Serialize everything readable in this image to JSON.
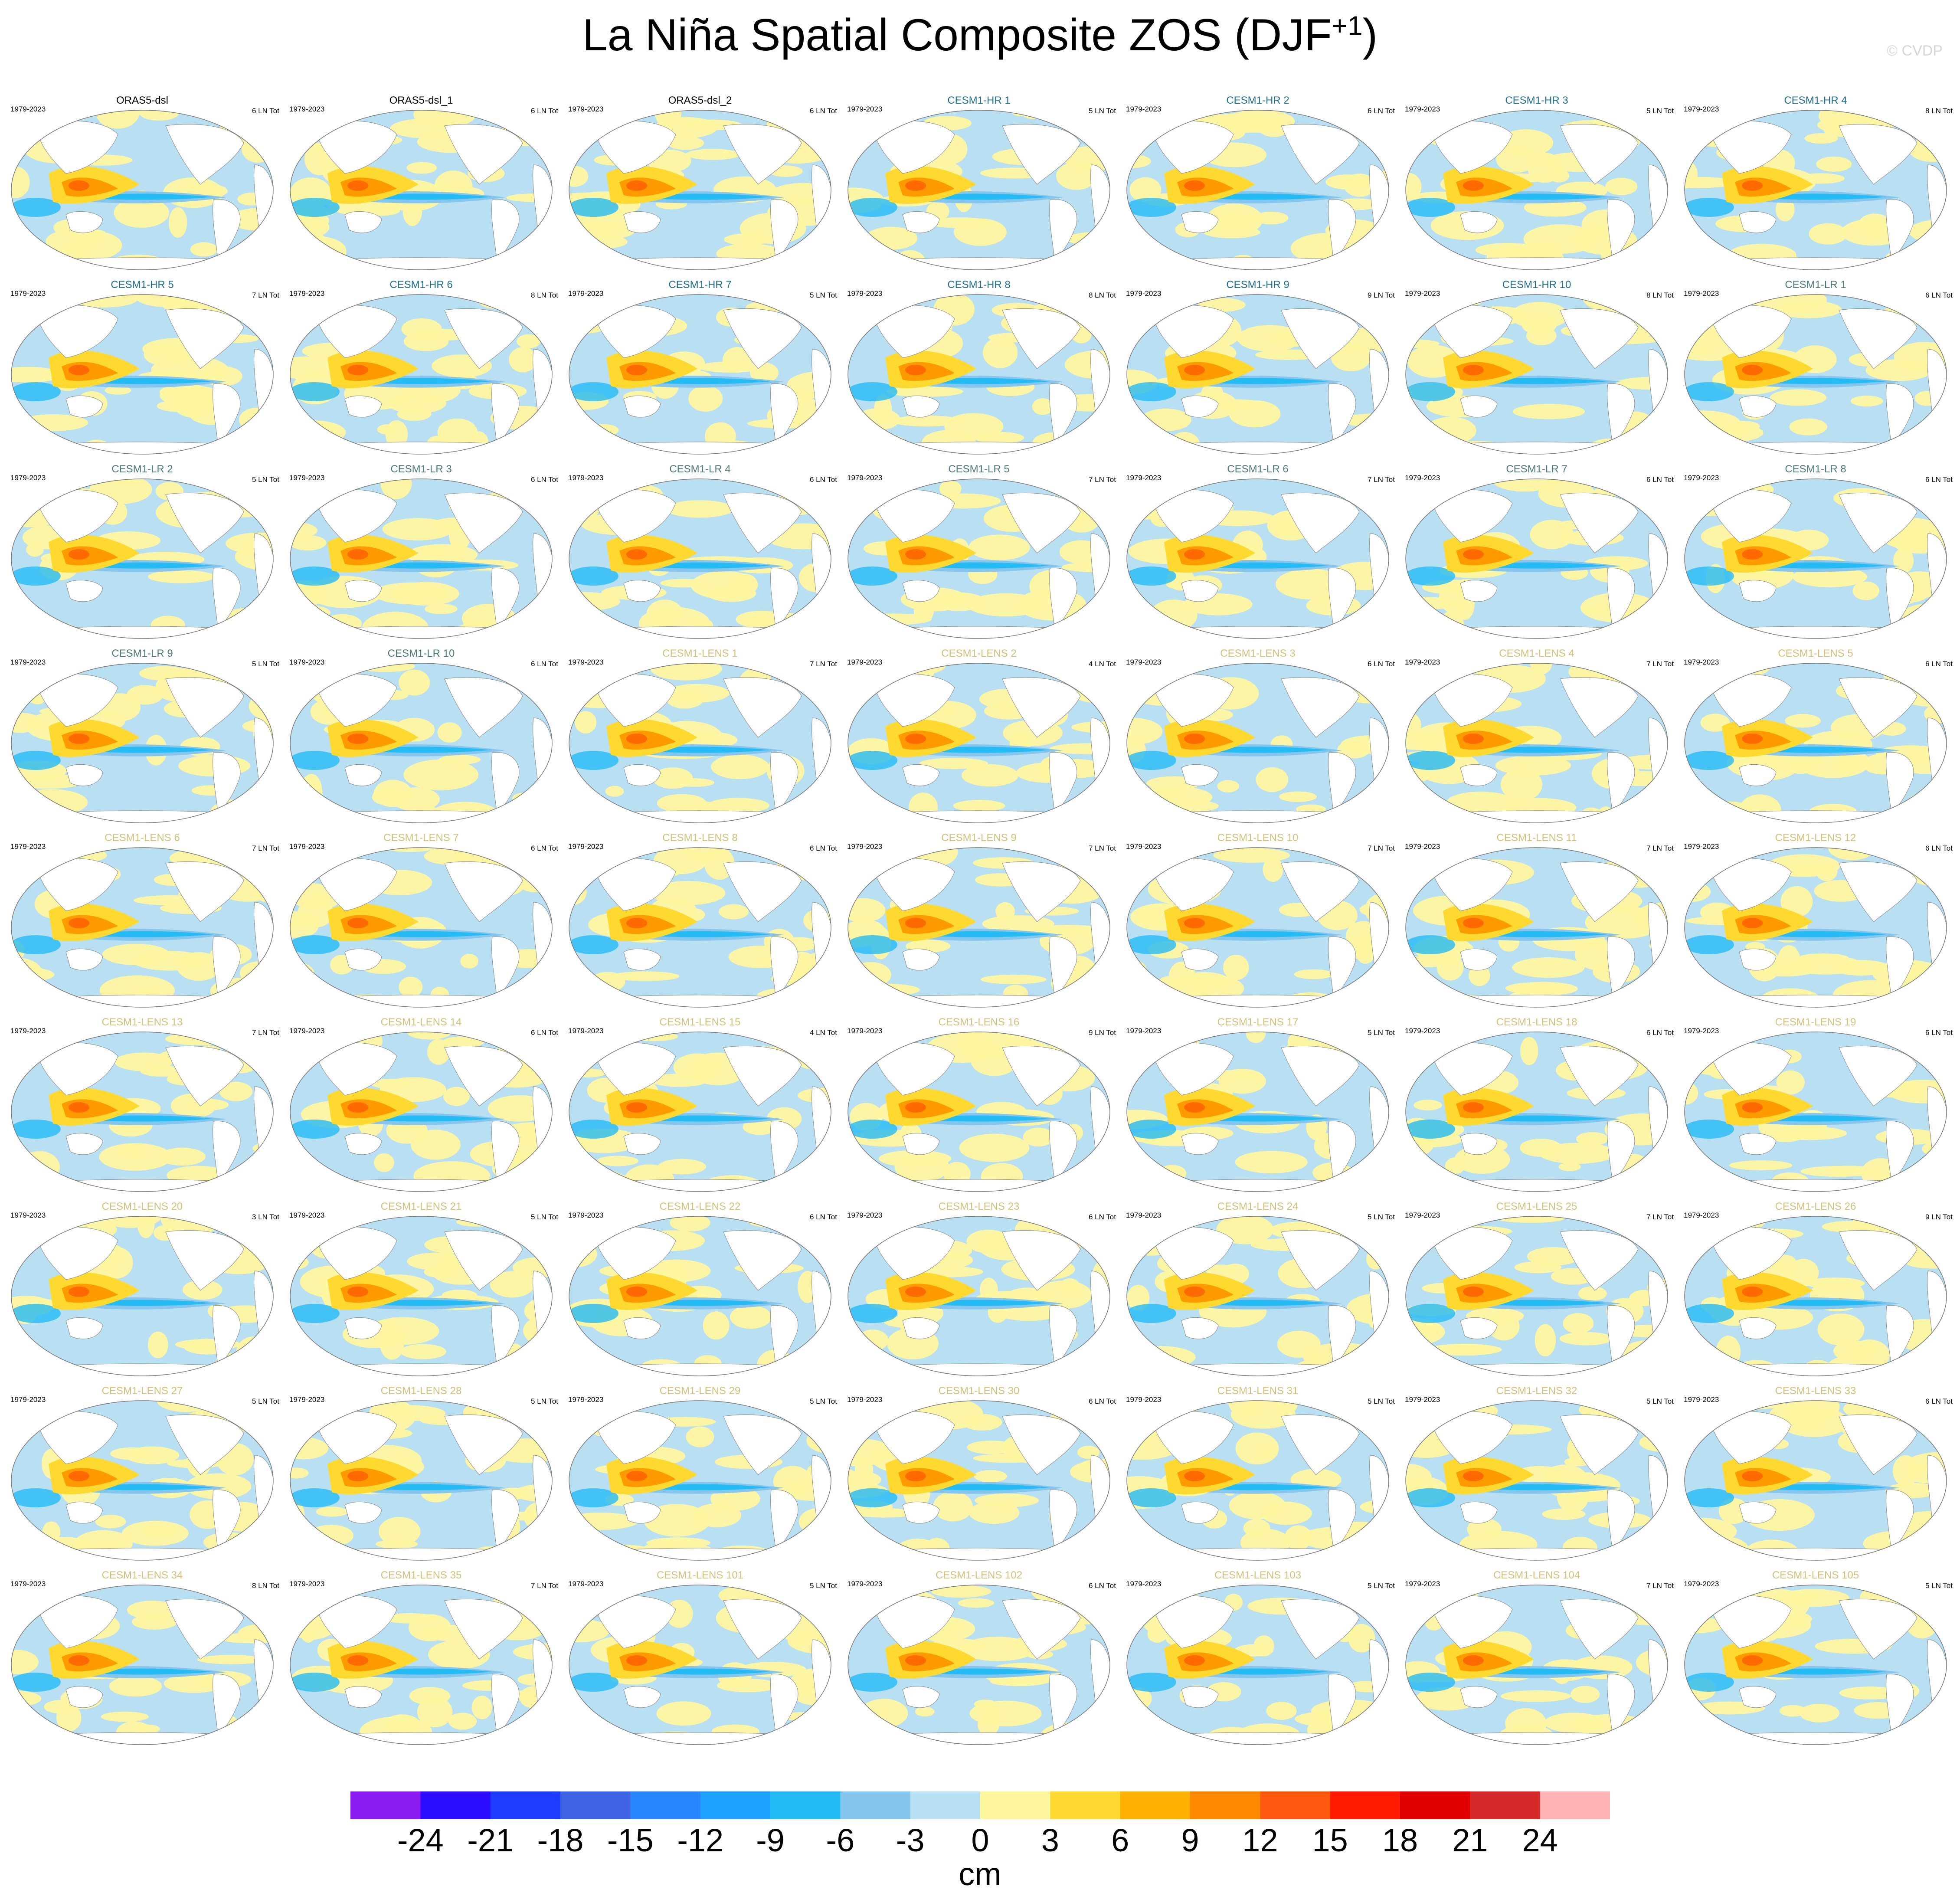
{
  "title": {
    "main": "La Niña Spatial Composite ZOS (DJF",
    "sup": "+1",
    "close": ")"
  },
  "copyright": "© CVDP",
  "period": "1979-2023",
  "colors": {
    "obs_title": "#000000",
    "hr_title": "#1f6f8f",
    "lr_title": "#4d7a7a",
    "lens_title": "#d4c07a",
    "ocean_base": "#b8dff2",
    "land": "#ffffff",
    "coast": "#888888"
  },
  "map_style": {
    "levels": {
      "strong_pos": "#ff6a00",
      "mid_pos": "#ff9a00",
      "weak_pos": "#ffd830",
      "faint_pos": "#fff6a0",
      "faint_neg": "#b8dff2",
      "weak_neg": "#86c6ee",
      "mid_neg": "#25bcf5",
      "strong_neg": "#1ea0ff"
    }
  },
  "panels": [
    {
      "title": "ORAS5-dsl",
      "count": "6 LN Tot",
      "group": "obs"
    },
    {
      "title": "ORAS5-dsl_1",
      "count": "6 LN Tot",
      "group": "obs"
    },
    {
      "title": "ORAS5-dsl_2",
      "count": "6 LN Tot",
      "group": "obs"
    },
    {
      "title": "CESM1-HR 1",
      "count": "5 LN Tot",
      "group": "hr"
    },
    {
      "title": "CESM1-HR 2",
      "count": "6 LN Tot",
      "group": "hr"
    },
    {
      "title": "CESM1-HR 3",
      "count": "5 LN Tot",
      "group": "hr"
    },
    {
      "title": "CESM1-HR 4",
      "count": "8 LN Tot",
      "group": "hr"
    },
    {
      "title": "CESM1-HR 5",
      "count": "7 LN Tot",
      "group": "hr"
    },
    {
      "title": "CESM1-HR 6",
      "count": "8 LN Tot",
      "group": "hr"
    },
    {
      "title": "CESM1-HR 7",
      "count": "5 LN Tot",
      "group": "hr"
    },
    {
      "title": "CESM1-HR 8",
      "count": "8 LN Tot",
      "group": "hr"
    },
    {
      "title": "CESM1-HR 9",
      "count": "9 LN Tot",
      "group": "hr"
    },
    {
      "title": "CESM1-HR 10",
      "count": "8 LN Tot",
      "group": "hr"
    },
    {
      "title": "CESM1-LR 1",
      "count": "6 LN Tot",
      "group": "lr"
    },
    {
      "title": "CESM1-LR 2",
      "count": "5 LN Tot",
      "group": "lr"
    },
    {
      "title": "CESM1-LR 3",
      "count": "6 LN Tot",
      "group": "lr"
    },
    {
      "title": "CESM1-LR 4",
      "count": "6 LN Tot",
      "group": "lr"
    },
    {
      "title": "CESM1-LR 5",
      "count": "7 LN Tot",
      "group": "lr"
    },
    {
      "title": "CESM1-LR 6",
      "count": "7 LN Tot",
      "group": "lr"
    },
    {
      "title": "CESM1-LR 7",
      "count": "6 LN Tot",
      "group": "lr"
    },
    {
      "title": "CESM1-LR 8",
      "count": "6 LN Tot",
      "group": "lr"
    },
    {
      "title": "CESM1-LR 9",
      "count": "5 LN Tot",
      "group": "lr"
    },
    {
      "title": "CESM1-LR 10",
      "count": "6 LN Tot",
      "group": "lr"
    },
    {
      "title": "CESM1-LENS 1",
      "count": "7 LN Tot",
      "group": "lens"
    },
    {
      "title": "CESM1-LENS 2",
      "count": "4 LN Tot",
      "group": "lens"
    },
    {
      "title": "CESM1-LENS 3",
      "count": "6 LN Tot",
      "group": "lens"
    },
    {
      "title": "CESM1-LENS 4",
      "count": "7 LN Tot",
      "group": "lens"
    },
    {
      "title": "CESM1-LENS 5",
      "count": "6 LN Tot",
      "group": "lens"
    },
    {
      "title": "CESM1-LENS 6",
      "count": "7 LN Tot",
      "group": "lens"
    },
    {
      "title": "CESM1-LENS 7",
      "count": "6 LN Tot",
      "group": "lens"
    },
    {
      "title": "CESM1-LENS 8",
      "count": "6 LN Tot",
      "group": "lens"
    },
    {
      "title": "CESM1-LENS 9",
      "count": "7 LN Tot",
      "group": "lens"
    },
    {
      "title": "CESM1-LENS 10",
      "count": "7 LN Tot",
      "group": "lens"
    },
    {
      "title": "CESM1-LENS 11",
      "count": "7 LN Tot",
      "group": "lens"
    },
    {
      "title": "CESM1-LENS 12",
      "count": "6 LN Tot",
      "group": "lens"
    },
    {
      "title": "CESM1-LENS 13",
      "count": "7 LN Tot",
      "group": "lens"
    },
    {
      "title": "CESM1-LENS 14",
      "count": "6 LN Tot",
      "group": "lens"
    },
    {
      "title": "CESM1-LENS 15",
      "count": "4 LN Tot",
      "group": "lens"
    },
    {
      "title": "CESM1-LENS 16",
      "count": "9 LN Tot",
      "group": "lens"
    },
    {
      "title": "CESM1-LENS 17",
      "count": "5 LN Tot",
      "group": "lens"
    },
    {
      "title": "CESM1-LENS 18",
      "count": "6 LN Tot",
      "group": "lens"
    },
    {
      "title": "CESM1-LENS 19",
      "count": "6 LN Tot",
      "group": "lens"
    },
    {
      "title": "CESM1-LENS 20",
      "count": "3 LN Tot",
      "group": "lens"
    },
    {
      "title": "CESM1-LENS 21",
      "count": "5 LN Tot",
      "group": "lens"
    },
    {
      "title": "CESM1-LENS 22",
      "count": "6 LN Tot",
      "group": "lens"
    },
    {
      "title": "CESM1-LENS 23",
      "count": "6 LN Tot",
      "group": "lens"
    },
    {
      "title": "CESM1-LENS 24",
      "count": "5 LN Tot",
      "group": "lens"
    },
    {
      "title": "CESM1-LENS 25",
      "count": "7 LN Tot",
      "group": "lens"
    },
    {
      "title": "CESM1-LENS 26",
      "count": "9 LN Tot",
      "group": "lens"
    },
    {
      "title": "CESM1-LENS 27",
      "count": "5 LN Tot",
      "group": "lens"
    },
    {
      "title": "CESM1-LENS 28",
      "count": "5 LN Tot",
      "group": "lens"
    },
    {
      "title": "CESM1-LENS 29",
      "count": "5 LN Tot",
      "group": "lens"
    },
    {
      "title": "CESM1-LENS 30",
      "count": "6 LN Tot",
      "group": "lens"
    },
    {
      "title": "CESM1-LENS 31",
      "count": "5 LN Tot",
      "group": "lens"
    },
    {
      "title": "CESM1-LENS 32",
      "count": "5 LN Tot",
      "group": "lens"
    },
    {
      "title": "CESM1-LENS 33",
      "count": "6 LN Tot",
      "group": "lens"
    },
    {
      "title": "CESM1-LENS 34",
      "count": "8 LN Tot",
      "group": "lens"
    },
    {
      "title": "CESM1-LENS 35",
      "count": "7 LN Tot",
      "group": "lens"
    },
    {
      "title": "CESM1-LENS 101",
      "count": "5 LN Tot",
      "group": "lens"
    },
    {
      "title": "CESM1-LENS 102",
      "count": "6 LN Tot",
      "group": "lens"
    },
    {
      "title": "CESM1-LENS 103",
      "count": "5 LN Tot",
      "group": "lens"
    },
    {
      "title": "CESM1-LENS 104",
      "count": "7 LN Tot",
      "group": "lens"
    },
    {
      "title": "CESM1-LENS 105",
      "count": "5 LN Tot",
      "group": "lens"
    }
  ],
  "colorbar": {
    "colors": [
      "#8c1cf0",
      "#2b0cff",
      "#1e3cff",
      "#3f64e6",
      "#2a86ff",
      "#1ea0ff",
      "#25bcf5",
      "#86c6ee",
      "#b8dff2",
      "#fff6a0",
      "#ffd830",
      "#ffb000",
      "#ff8a00",
      "#ff5a10",
      "#ff1a00",
      "#e00000",
      "#d62a2a",
      "#ffb3b3"
    ],
    "labels": [
      "-24",
      "-21",
      "-18",
      "-15",
      "-12",
      "-9",
      "-6",
      "-3",
      "0",
      "3",
      "6",
      "9",
      "12",
      "15",
      "18",
      "21",
      "24"
    ],
    "unit": "cm"
  }
}
